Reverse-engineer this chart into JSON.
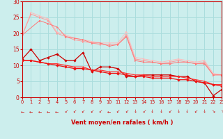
{
  "xlabel": "Vent moyen/en rafales ( km/h )",
  "xlim": [
    0,
    23
  ],
  "ylim": [
    0,
    30
  ],
  "yticks": [
    0,
    5,
    10,
    15,
    20,
    25,
    30
  ],
  "xticks": [
    0,
    1,
    2,
    3,
    4,
    5,
    6,
    7,
    8,
    9,
    10,
    11,
    12,
    13,
    14,
    15,
    16,
    17,
    18,
    19,
    20,
    21,
    22,
    23
  ],
  "bg_color": "#cceeed",
  "grid_color": "#aadddd",
  "line1_x": [
    0,
    1,
    2,
    3,
    4,
    5,
    6,
    7,
    8,
    9,
    10,
    11,
    12,
    13,
    14,
    15,
    16,
    17,
    18,
    19,
    20,
    21,
    22,
    23
  ],
  "line1_y": [
    19.5,
    26.5,
    25.5,
    24.5,
    20.5,
    19.5,
    18.5,
    18.0,
    17.5,
    17.0,
    17.0,
    17.0,
    20.5,
    12.5,
    12.0,
    11.5,
    11.0,
    11.5,
    12.0,
    11.5,
    11.0,
    11.5,
    7.5,
    7.0
  ],
  "line1_color": "#ffbbbb",
  "line2_x": [
    0,
    1,
    2,
    3,
    4,
    5,
    6,
    7,
    8,
    9,
    10,
    11,
    12,
    13,
    14,
    15,
    16,
    17,
    18,
    19,
    20,
    21,
    22,
    23
  ],
  "line2_y": [
    19.5,
    26.0,
    25.0,
    24.0,
    20.0,
    19.0,
    18.0,
    17.5,
    17.0,
    16.5,
    16.5,
    16.5,
    19.5,
    12.0,
    11.5,
    11.0,
    10.5,
    11.0,
    11.5,
    11.0,
    10.5,
    11.0,
    7.0,
    7.0
  ],
  "line2_color": "#ff9999",
  "line3_x": [
    0,
    2,
    3,
    4,
    5,
    6,
    7,
    8,
    9,
    10,
    11,
    12,
    13,
    14,
    15,
    16,
    17,
    18,
    19,
    20,
    21,
    22,
    23
  ],
  "line3_y": [
    19.5,
    24.0,
    23.0,
    22.0,
    19.0,
    18.5,
    18.0,
    17.0,
    17.0,
    16.0,
    16.5,
    19.0,
    11.5,
    11.0,
    11.0,
    10.5,
    10.5,
    11.0,
    11.0,
    10.5,
    10.5,
    7.0,
    7.0
  ],
  "line3_color": "#ff7777",
  "line4_x": [
    0,
    1,
    2,
    3,
    4,
    5,
    6,
    7,
    8,
    9,
    10,
    11,
    12,
    13,
    14,
    15,
    16,
    17,
    18,
    19,
    20,
    21,
    22,
    23
  ],
  "line4_y": [
    12.0,
    15.0,
    11.5,
    12.5,
    13.5,
    11.5,
    11.5,
    14.0,
    8.0,
    9.5,
    9.5,
    9.0,
    6.5,
    6.5,
    7.0,
    7.0,
    7.0,
    7.0,
    6.5,
    6.5,
    5.0,
    4.5,
    0.5,
    2.5
  ],
  "line4_color": "#cc0000",
  "line5_x": [
    0,
    1,
    2,
    3,
    4,
    5,
    6,
    7,
    8,
    9,
    10,
    11,
    12,
    13,
    14,
    15,
    16,
    17,
    18,
    19,
    20,
    21,
    22,
    23
  ],
  "line5_y": [
    11.5,
    11.5,
    11.0,
    10.5,
    10.5,
    10.0,
    9.5,
    9.5,
    8.5,
    8.5,
    8.0,
    8.0,
    7.5,
    7.0,
    7.0,
    6.5,
    6.5,
    6.5,
    6.5,
    6.0,
    5.5,
    5.0,
    4.0,
    4.0
  ],
  "line5_color": "#ff3333",
  "line6_x": [
    0,
    1,
    2,
    3,
    4,
    5,
    6,
    7,
    8,
    9,
    10,
    11,
    12,
    13,
    14,
    15,
    16,
    17,
    18,
    19,
    20,
    21,
    22,
    23
  ],
  "line6_y": [
    11.5,
    11.5,
    11.0,
    10.5,
    10.0,
    9.5,
    9.0,
    9.0,
    8.5,
    8.0,
    7.5,
    7.5,
    7.0,
    6.5,
    6.5,
    6.0,
    6.0,
    6.0,
    5.5,
    5.5,
    5.0,
    4.5,
    4.0,
    3.5
  ],
  "line6_color": "#ee1111",
  "arrow_color": "#cc0000",
  "label_color": "#cc0000"
}
